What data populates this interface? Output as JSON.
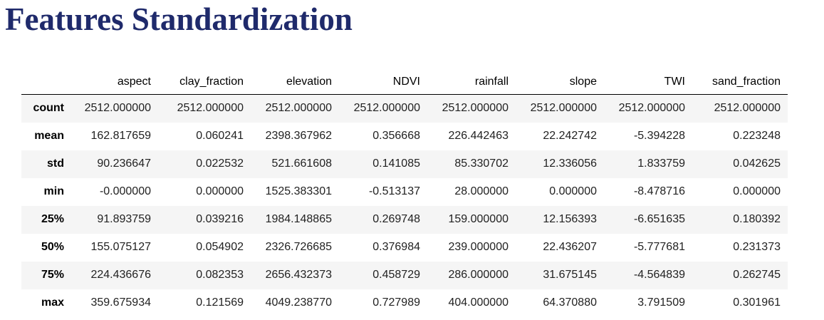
{
  "title": "Features Standardization",
  "table": {
    "columns": [
      "aspect",
      "clay_fraction",
      "elevation",
      "NDVI",
      "rainfall",
      "slope",
      "TWI",
      "sand_fraction"
    ],
    "rows": [
      {
        "label": "count",
        "values": [
          "2512.000000",
          "2512.000000",
          "2512.000000",
          "2512.000000",
          "2512.000000",
          "2512.000000",
          "2512.000000",
          "2512.000000"
        ]
      },
      {
        "label": "mean",
        "values": [
          "162.817659",
          "0.060241",
          "2398.367962",
          "0.356668",
          "226.442463",
          "22.242742",
          "-5.394228",
          "0.223248"
        ]
      },
      {
        "label": "std",
        "values": [
          "90.236647",
          "0.022532",
          "521.661608",
          "0.141085",
          "85.330702",
          "12.336056",
          "1.833759",
          "0.042625"
        ]
      },
      {
        "label": "min",
        "values": [
          "-0.000000",
          "0.000000",
          "1525.383301",
          "-0.513137",
          "28.000000",
          "0.000000",
          "-8.478716",
          "0.000000"
        ]
      },
      {
        "label": "25%",
        "values": [
          "91.893759",
          "0.039216",
          "1984.148865",
          "0.269748",
          "159.000000",
          "12.156393",
          "-6.651635",
          "0.180392"
        ]
      },
      {
        "label": "50%",
        "values": [
          "155.075127",
          "0.054902",
          "2326.726685",
          "0.376984",
          "239.000000",
          "22.436207",
          "-5.777681",
          "0.231373"
        ]
      },
      {
        "label": "75%",
        "values": [
          "224.436676",
          "0.082353",
          "2656.432373",
          "0.458729",
          "286.000000",
          "31.675145",
          "-4.564839",
          "0.262745"
        ]
      },
      {
        "label": "max",
        "values": [
          "359.675934",
          "0.121569",
          "4049.238770",
          "0.727989",
          "404.000000",
          "64.370880",
          "3.791509",
          "0.301961"
        ]
      }
    ]
  }
}
